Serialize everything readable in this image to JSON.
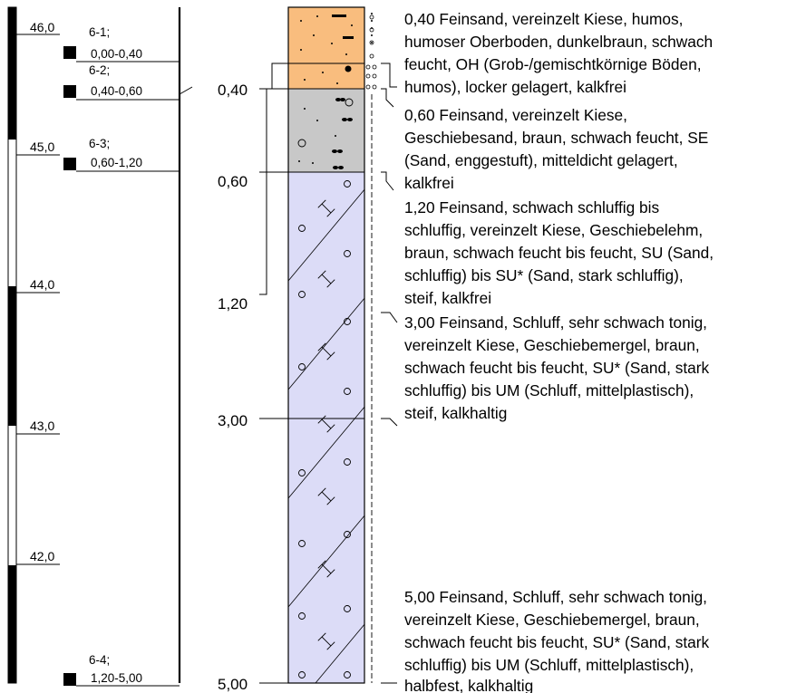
{
  "elevation_scale": {
    "labels": [
      "46,0",
      "45,0",
      "44,0",
      "43,0",
      "42,0"
    ]
  },
  "samples": [
    {
      "id": "6-1;",
      "range": "0,00-0,40"
    },
    {
      "id": "6-2;",
      "range": "0,40-0,60"
    },
    {
      "id": "6-3;",
      "range": "0,60-1,20"
    },
    {
      "id": "6-4;",
      "range": "1,20-5,00"
    }
  ],
  "layers": [
    {
      "depth": "0,40",
      "fill": "#f9bd7e",
      "description": [
        "0,40  Feinsand, vereinzelt Kiese, humos,",
        "humoser Oberboden, dunkelbraun, schwach",
        "feucht, OH (Grob-/gemischtkörnige Böden,",
        "humos), locker gelagert, kalkfrei"
      ]
    },
    {
      "depth": "0,60",
      "fill": "#c8c8c8",
      "description": [
        "0,60  Feinsand, vereinzelt Kiese,",
        "Geschiebesand, braun, schwach feucht, SE",
        "(Sand, enggestuft), mitteldicht gelagert,",
        "kalkfrei"
      ]
    },
    {
      "depth": "1,20",
      "fill": "#dcdcf7",
      "description": [
        "1,20  Feinsand, schwach schluffig bis",
        "schluffig, vereinzelt Kiese, Geschiebelehm,",
        "braun, schwach feucht bis feucht, SU (Sand,",
        "schluffig) bis SU* (Sand, stark schluffig),",
        "steif, kalkfrei"
      ]
    },
    {
      "depth": "3,00",
      "fill": "#dcdcf7",
      "description": [
        "3,00  Feinsand, Schluff, sehr schwach tonig,",
        "vereinzelt Kiese, Geschiebemergel, braun,",
        "schwach feucht bis feucht, SU* (Sand, stark",
        "schluffig) bis UM (Schluff, mittelplastisch),",
        "steif, kalkhaltig"
      ]
    },
    {
      "depth": "5,00",
      "fill": "#dcdcf7",
      "description": [
        "5,00  Feinsand, Schluff, sehr schwach tonig,",
        "vereinzelt Kiese, Geschiebemergel, braun,",
        "schwach feucht bis feucht, SU* (Sand, stark",
        "schluffig) bis UM (Schluff, mittelplastisch),",
        "halbfest, kalkhaltig"
      ]
    }
  ]
}
